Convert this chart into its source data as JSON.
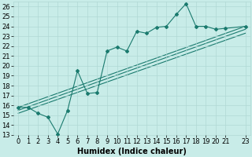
{
  "title": "",
  "xlabel": "Humidex (Indice chaleur)",
  "background_color": "#c8ece8",
  "grid_color": "#b0d8d4",
  "line_color": "#1a7a6e",
  "xlim": [
    -0.5,
    23.5
  ],
  "ylim": [
    13,
    26.5
  ],
  "yticks": [
    13,
    14,
    15,
    16,
    17,
    18,
    19,
    20,
    21,
    22,
    23,
    24,
    25,
    26
  ],
  "xticks": [
    0,
    1,
    2,
    3,
    4,
    5,
    6,
    7,
    8,
    9,
    10,
    11,
    12,
    13,
    14,
    15,
    16,
    17,
    18,
    19,
    20,
    21,
    23
  ],
  "xtick_labels": [
    "0",
    "1",
    "2",
    "3",
    "4",
    "5",
    "6",
    "7",
    "8",
    "9",
    "10",
    "11",
    "12",
    "13",
    "14",
    "15",
    "16",
    "17",
    "18",
    "19",
    "20",
    "21",
    "23"
  ],
  "series1_x": [
    0,
    1,
    2,
    3,
    4,
    5,
    6,
    7,
    8,
    9,
    10,
    11,
    12,
    13,
    14,
    15,
    16,
    17,
    18,
    19,
    20,
    21,
    23
  ],
  "series1_y": [
    15.8,
    15.8,
    15.2,
    14.8,
    13.1,
    15.5,
    19.5,
    17.2,
    17.3,
    21.5,
    21.9,
    21.5,
    23.5,
    23.3,
    23.9,
    24.0,
    25.2,
    26.3,
    24.0,
    24.0,
    23.7,
    23.8,
    24.0
  ],
  "series2_x": [
    0,
    23
  ],
  "series2_y": [
    15.8,
    24.0
  ],
  "series3_x": [
    0,
    23
  ],
  "series3_y": [
    15.5,
    23.7
  ],
  "series4_x": [
    0,
    23
  ],
  "series4_y": [
    15.2,
    23.3
  ],
  "markersize": 2.0,
  "linewidth": 0.8,
  "font_size": 6
}
